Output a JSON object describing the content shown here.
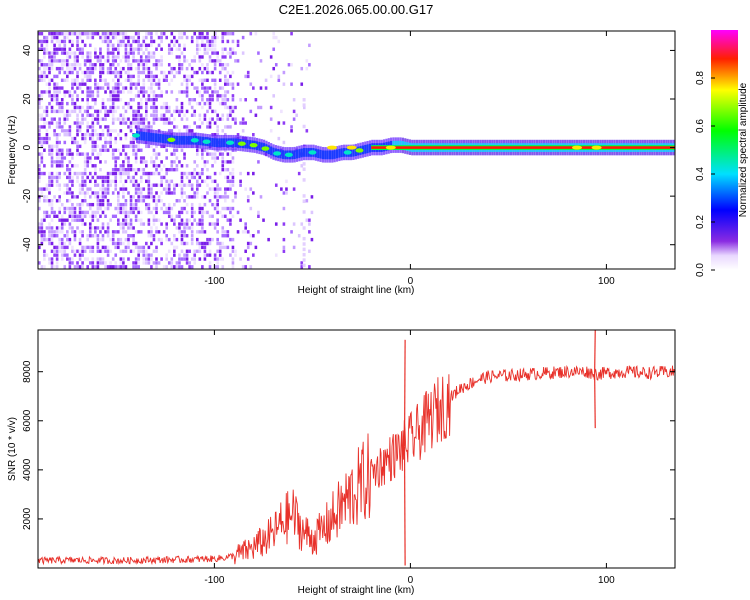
{
  "chart_data": [
    {
      "type": "heatmap",
      "title": "C2E1.2026.065.00.00.G17",
      "xlabel": "Height of straight line (km)",
      "ylabel": "Frequency (Hz)",
      "xlim": [
        -190,
        135
      ],
      "ylim": [
        -50,
        48
      ],
      "xticks": [
        -100,
        0,
        100
      ],
      "xtick_labels": [
        "-100",
        "0",
        "100"
      ],
      "yticks": [
        -40,
        -20,
        0,
        20,
        40
      ],
      "ytick_labels": [
        "-40",
        "-20",
        "0",
        "20",
        "40"
      ],
      "colorbar": {
        "label": "Normalized spectral amplitude",
        "range": [
          0,
          1
        ],
        "ticks": [
          0.0,
          0.2,
          0.4,
          0.6,
          0.8
        ],
        "tick_labels": [
          "0.0",
          "0.2",
          "0.4",
          "0.6",
          "0.8"
        ]
      },
      "ridge": {
        "x": [
          -140,
          -130,
          -120,
          -110,
          -100,
          -90,
          -80,
          -75,
          -70,
          -65,
          -60,
          -55,
          -50,
          -45,
          -40,
          -35,
          -30,
          -25,
          -20,
          -15,
          -10,
          -5,
          0,
          20,
          50,
          80,
          90,
          100,
          135
        ],
        "y": [
          5,
          4,
          3,
          3,
          2,
          2,
          1,
          0,
          -2,
          -3,
          -3,
          -2,
          -2,
          -3,
          -3,
          -2,
          -2,
          -1,
          0,
          0,
          1,
          1,
          0,
          0,
          0,
          0,
          0,
          0,
          0
        ]
      }
    },
    {
      "type": "line",
      "title": "",
      "xlabel": "Height of straight line (km)",
      "ylabel": "SNR (10 * v/v)",
      "xlim": [
        -190,
        135
      ],
      "ylim": [
        0,
        9700
      ],
      "xticks": [
        -100,
        0,
        100
      ],
      "xtick_labels": [
        "-100",
        "0",
        "100"
      ],
      "yticks": [
        2000,
        4000,
        6000,
        8000
      ],
      "ytick_labels": [
        "2000",
        "4000",
        "6000",
        "8000"
      ],
      "series": [
        {
          "name": "SNR",
          "color": "#e8312a",
          "x": [
            -190,
            -170,
            -150,
            -130,
            -110,
            -100,
            -95,
            -90,
            -85,
            -80,
            -75,
            -70,
            -65,
            -60,
            -55,
            -50,
            -45,
            -40,
            -35,
            -30,
            -25,
            -20,
            -15,
            -10,
            -5,
            0,
            5,
            10,
            15,
            20,
            25,
            30,
            35,
            40,
            50,
            60,
            70,
            80,
            90,
            95,
            100,
            110,
            120,
            135
          ],
          "values": [
            300,
            320,
            300,
            330,
            350,
            380,
            420,
            500,
            650,
            850,
            1100,
            1400,
            1900,
            2200,
            1500,
            1200,
            1500,
            2000,
            2500,
            3000,
            3400,
            3800,
            4200,
            4500,
            4800,
            5200,
            5600,
            6100,
            6500,
            6900,
            7300,
            7500,
            7700,
            7800,
            7850,
            7900,
            7950,
            8000,
            8000,
            7900,
            7950,
            8000,
            7950,
            8000
          ],
          "spikes": [
            {
              "x": -3,
              "value": 9300
            },
            {
              "x": -3,
              "value": 100
            },
            {
              "x": 94,
              "value": 9700
            },
            {
              "x": 94,
              "value": 5700
            }
          ]
        }
      ]
    }
  ]
}
